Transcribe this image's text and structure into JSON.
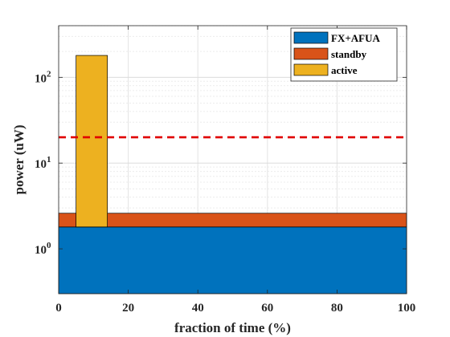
{
  "chart_data": {
    "type": "area",
    "xlabel": "fraction of time (%)",
    "ylabel": "power (uW)",
    "xlim": [
      0,
      100
    ],
    "ylim": [
      0.3,
      400
    ],
    "yscale": "log",
    "x_ticks": [
      "0",
      "20",
      "40",
      "60",
      "80",
      "100"
    ],
    "y_ticks": [
      {
        "value": 1,
        "base": "10",
        "exp": "0"
      },
      {
        "value": 10,
        "base": "10",
        "exp": "1"
      },
      {
        "value": 100,
        "base": "10",
        "exp": "2"
      }
    ],
    "grid": true,
    "legend_position": "top-right",
    "series": [
      {
        "name": "FX+AFUA",
        "color": "#0072BD",
        "x": [
          0,
          100
        ],
        "y_bottom": 0.3,
        "y_top": 1.8
      },
      {
        "name": "standby",
        "color": "#D95319",
        "x": [
          0,
          100
        ],
        "y_bottom": 1.8,
        "y_top": 2.6
      },
      {
        "name": "active",
        "color": "#EDB120",
        "x": [
          5,
          14
        ],
        "y_bottom": 1.8,
        "y_top": 180
      }
    ],
    "reference_line": {
      "y": 20,
      "color": "#E00000",
      "style": "dashed"
    }
  }
}
